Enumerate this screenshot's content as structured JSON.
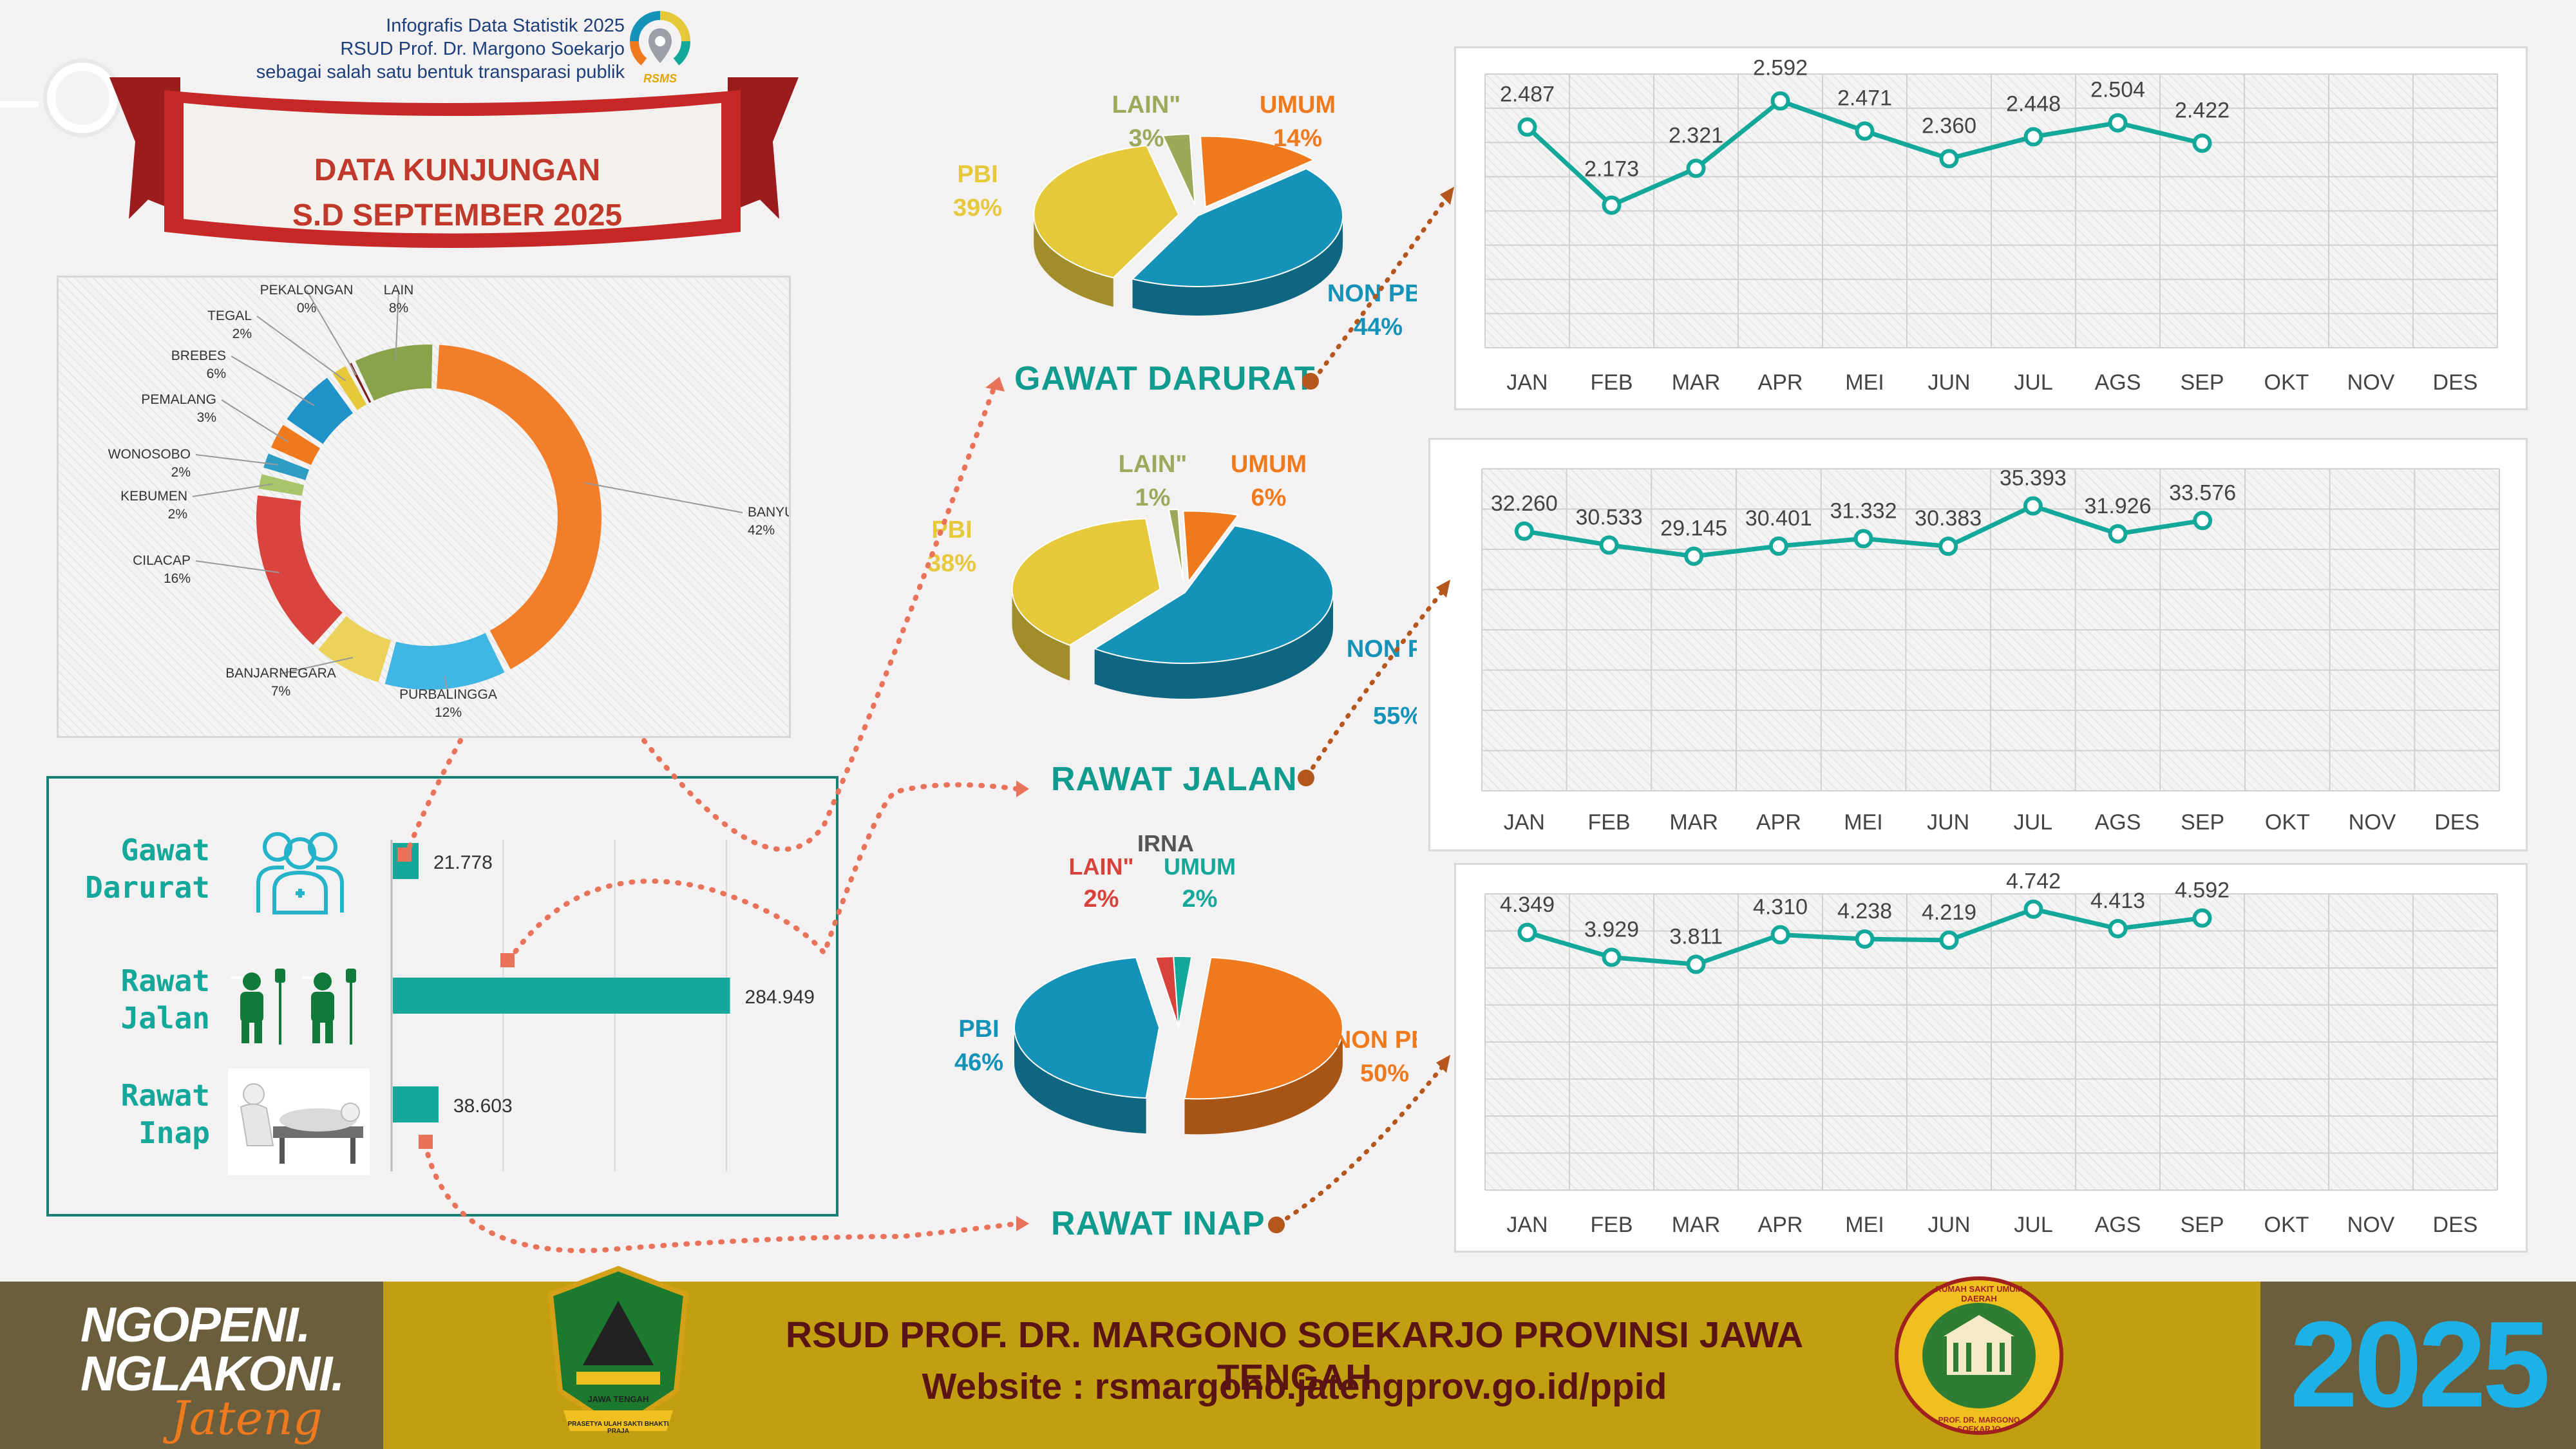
{
  "header": {
    "subtitle_lines": [
      "Infografis Data Statistik 2025",
      "RSUD Prof. Dr. Margono Soekarjo",
      "sebagai salah satu bentuk transparasi publik"
    ],
    "logo_text": "RSMS",
    "ribbon_line1": "DATA KUNJUNGAN",
    "ribbon_line2": "S.D SEPTEMBER 2025"
  },
  "colors": {
    "teal": "#14a89a",
    "orange": "#ef7a1e",
    "blue": "#1592b8",
    "yellow": "#e6c93a",
    "olive": "#9aaa5a",
    "red": "#d8423a",
    "bottom_bar": "#c29f10",
    "dark_red_text": "#c0392b"
  },
  "chart_data": [
    {
      "id": "region-donut",
      "type": "pie",
      "title": "",
      "slices": [
        {
          "label": "BANYUMAS",
          "pct_label": "42%",
          "value": 42,
          "color": "#f37e2a"
        },
        {
          "label": "PURBALINGGA",
          "pct_label": "12%",
          "value": 12,
          "color": "#3fb6e3"
        },
        {
          "label": "BANJARNEGARA",
          "pct_label": "7%",
          "value": 7,
          "color": "#ecd25a"
        },
        {
          "label": "CILACAP",
          "pct_label": "16%",
          "value": 16,
          "color": "#d9453e"
        },
        {
          "label": "KEBUMEN",
          "pct_label": "2%",
          "value": 2,
          "color": "#a8c56a"
        },
        {
          "label": "WONOSOBO",
          "pct_label": "2%",
          "value": 2,
          "color": "#2d9dc3"
        },
        {
          "label": "PEMALANG",
          "pct_label": "3%",
          "value": 3,
          "color": "#ef7a1e"
        },
        {
          "label": "BREBES",
          "pct_label": "6%",
          "value": 6,
          "color": "#1f93c8"
        },
        {
          "label": "TEGAL",
          "pct_label": "2%",
          "value": 2,
          "color": "#e6c93a"
        },
        {
          "label": "PEKALONGAN",
          "pct_label": "0%",
          "value": 0.4,
          "color": "#7a1f1f"
        },
        {
          "label": "LAIN",
          "pct_label": "8%",
          "value": 8,
          "color": "#8aa24a"
        }
      ]
    },
    {
      "id": "gd-pie",
      "type": "pie",
      "title": "GAWAT DARURAT",
      "slices": [
        {
          "label": "UMUM",
          "pct_label": "14%",
          "value": 14,
          "color": "#ef7a1e"
        },
        {
          "label": "NON PBI",
          "pct_label": "44%",
          "value": 44,
          "color": "#1592b8"
        },
        {
          "label": "PBI",
          "pct_label": "39%",
          "value": 39,
          "color": "#e6c93a"
        },
        {
          "label": "LAIN\"",
          "pct_label": "3%",
          "value": 3,
          "color": "#9aaa5a"
        }
      ]
    },
    {
      "id": "rj-pie",
      "type": "pie",
      "title": "RAWAT JALAN",
      "slices": [
        {
          "label": "UMUM",
          "pct_label": "6%",
          "value": 6,
          "color": "#ef7a1e"
        },
        {
          "label": "NON PBI",
          "pct_label": "55%",
          "value": 55,
          "color": "#1592b8"
        },
        {
          "label": "PBI",
          "pct_label": "38%",
          "value": 38,
          "color": "#e6c93a"
        },
        {
          "label": "LAIN\"",
          "pct_label": "1%",
          "value": 1,
          "color": "#9aaa5a"
        }
      ]
    },
    {
      "id": "ri-pie",
      "type": "pie",
      "title": "IRNA",
      "slices": [
        {
          "label": "UMUM",
          "pct_label": "2%",
          "value": 2,
          "color": "#14a89a"
        },
        {
          "label": "NON PBI",
          "pct_label": "50%",
          "value": 50,
          "color": "#ef7a1e"
        },
        {
          "label": "PBI",
          "pct_label": "46%",
          "value": 46,
          "color": "#1592b8"
        },
        {
          "label": "LAIN\"",
          "pct_label": "2%",
          "value": 2,
          "color": "#d8423a"
        }
      ]
    },
    {
      "id": "gd-line",
      "type": "line",
      "categories": [
        "JAN",
        "FEB",
        "MAR",
        "APR",
        "MEI",
        "JUN",
        "JUL",
        "AGS",
        "SEP",
        "OKT",
        "NOV",
        "DES"
      ],
      "values": [
        2487,
        2173,
        2321,
        2592,
        2471,
        2360,
        2448,
        2504,
        2422
      ],
      "labels": [
        "2.487",
        "2.173",
        "2.321",
        "2.592",
        "2.471",
        "2.360",
        "2.448",
        "2.504",
        "2.422"
      ],
      "ylim": [
        1600,
        2700
      ]
    },
    {
      "id": "rj-line",
      "type": "line",
      "categories": [
        "JAN",
        "FEB",
        "MAR",
        "APR",
        "MEI",
        "JUN",
        "JUL",
        "AGS",
        "SEP",
        "OKT",
        "NOV",
        "DES"
      ],
      "values": [
        32260,
        30533,
        29145,
        30401,
        31332,
        30383,
        35393,
        31926,
        33576
      ],
      "labels": [
        "32.260",
        "30.533",
        "29.145",
        "30.401",
        "31.332",
        "30.383",
        "35.393",
        "31.926",
        "33.576"
      ],
      "ylim": [
        0,
        40000
      ]
    },
    {
      "id": "ri-line",
      "type": "line",
      "categories": [
        "JAN",
        "FEB",
        "MAR",
        "APR",
        "MEI",
        "JUN",
        "JUL",
        "AGS",
        "SEP",
        "OKT",
        "NOV",
        "DES"
      ],
      "values": [
        4349,
        3929,
        3811,
        4310,
        4238,
        4219,
        4742,
        4413,
        4592
      ],
      "labels": [
        "4.349",
        "3.929",
        "3.811",
        "4.310",
        "4.238",
        "4.219",
        "4.742",
        "4.413",
        "4.592"
      ],
      "ylim": [
        0,
        5000
      ]
    },
    {
      "id": "totals-bar",
      "type": "bar",
      "categories": [
        "Gawat Darurat",
        "Rawat Jalan",
        "Rawat Inap"
      ],
      "values": [
        21778,
        284949,
        38603
      ],
      "labels": [
        "21.778",
        "284.949",
        "38.603"
      ],
      "xlim": [
        0,
        300000
      ]
    }
  ],
  "sections": {
    "gd": "GAWAT DARURAT",
    "rj": "RAWAT JALAN",
    "ri": "RAWAT INAP"
  },
  "bar_labels": {
    "gd": [
      "Gawat",
      "Darurat"
    ],
    "rj": [
      "Rawat",
      "Jalan"
    ],
    "ri": [
      "Rawat",
      "Inap"
    ]
  },
  "footer": {
    "slogan1": "NGOPENI.",
    "slogan2": "NGLAKONI.",
    "slogan3": "Jateng",
    "title": "RSUD PROF. DR. MARGONO SOEKARJO PROVINSI JAWA TENGAH",
    "website": "Website : rsmargono.jatengprov.go.id/ppid",
    "year": "2025",
    "seal_left_top": "JAWA TENGAH",
    "seal_left_bottom": "PRASETYA ULAH SAKTI BHAKTI PRAJA",
    "seal_right_top": "RUMAH SAKIT UMUM DAERAH",
    "seal_right_bottom": "PROF. DR. MARGONO SOEKARJO"
  }
}
